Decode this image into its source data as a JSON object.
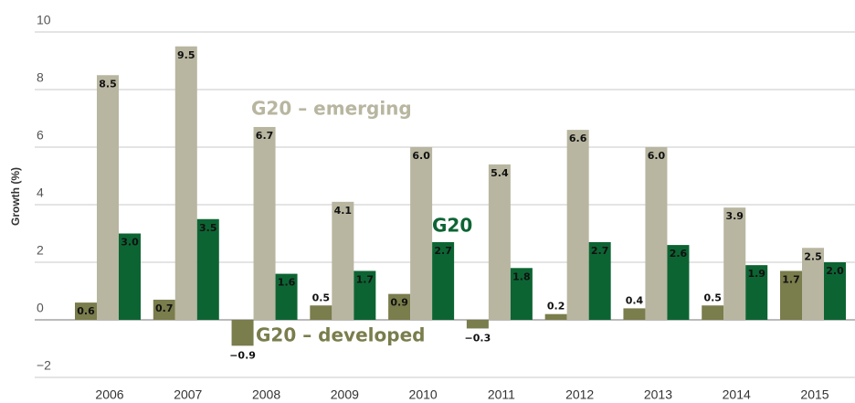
{
  "chart_data": {
    "type": "bar",
    "y_label": "Growth (%)",
    "categories": [
      "2006",
      "2007",
      "2008",
      "2009",
      "2010",
      "2011",
      "2012",
      "2013",
      "2014",
      "2015"
    ],
    "series": [
      {
        "name": "G20 – developed",
        "color": "#7a7d4c",
        "values": [
          0.6,
          0.7,
          -0.9,
          0.5,
          0.9,
          -0.3,
          0.2,
          0.4,
          0.5,
          1.7
        ],
        "value_labels": [
          "0.6",
          "0.7",
          "−0.9",
          "0.5",
          "0.9",
          "−0.3",
          "0.2",
          "0.4",
          "0.5",
          "1.7"
        ]
      },
      {
        "name": "G20 – emerging",
        "color": "#b8b6a0",
        "values": [
          8.5,
          9.5,
          6.7,
          4.1,
          6.0,
          5.4,
          6.6,
          6.0,
          3.9,
          2.5
        ],
        "value_labels": [
          "8.5",
          "9.5",
          "6.7",
          "4.1",
          "6.0",
          "5.4",
          "6.6",
          "6.0",
          "3.9",
          "2.5"
        ]
      },
      {
        "name": "G20",
        "color": "#0d6433",
        "values": [
          3.0,
          3.5,
          1.6,
          1.7,
          2.7,
          1.8,
          2.7,
          2.6,
          1.9,
          2.0
        ],
        "value_labels": [
          "3.0",
          "3.5",
          "1.6",
          "1.7",
          "2.7",
          "1.8",
          "2.7",
          "2.6",
          "1.9",
          "2.0"
        ]
      }
    ],
    "ylim": [
      -2,
      10
    ],
    "yticks": [
      {
        "value": -2,
        "label": "−2"
      },
      0,
      2,
      4,
      6,
      8,
      10
    ],
    "grid": true
  }
}
